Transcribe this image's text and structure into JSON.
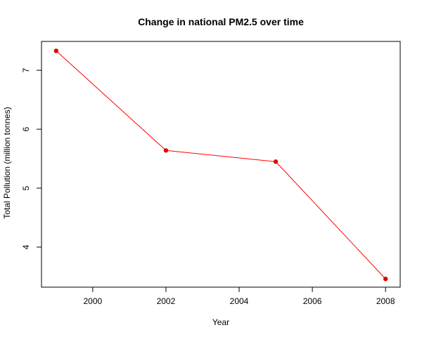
{
  "chart_data": {
    "type": "line",
    "title": "Change in national PM2.5 over time",
    "xlabel": "Year",
    "ylabel": "Total Pollution (million tonnes)",
    "x": [
      1999,
      2002,
      2005,
      2008
    ],
    "series": [
      {
        "values": [
          7.33,
          5.64,
          5.45,
          3.46
        ],
        "line_color": "#ff0000",
        "marker_color": "#e00000"
      }
    ],
    "xticks": [
      "2000",
      "2002",
      "2004",
      "2006",
      "2008"
    ],
    "yticks": [
      "4",
      "5",
      "6",
      "7"
    ],
    "xlim": [
      1998.6,
      2008.4
    ],
    "ylim": [
      3.32,
      7.49
    ],
    "grid": false,
    "legend": "none"
  },
  "colors": {
    "axis": "#000000",
    "background": "#ffffff"
  }
}
